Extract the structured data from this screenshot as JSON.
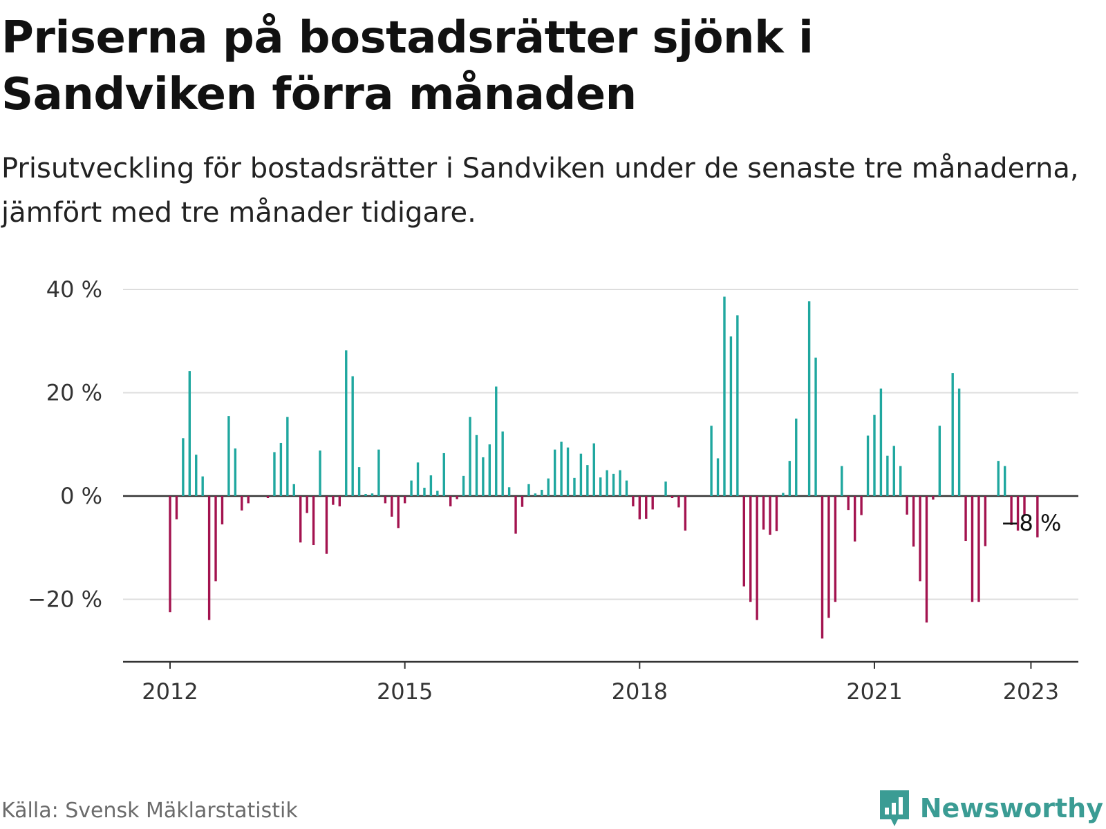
{
  "title": "Priserna på bostadsrätter sjönk i Sandviken förra månaden",
  "subtitle": "Prisutveckling för bostadsrätter i Sandviken under de senaste tre månaderna, jämfört med tre månader tidigare.",
  "source": "Källa: Svensk Mäklarstatistik",
  "brand": "Newsworthy",
  "colors": {
    "positive": "#1fa79f",
    "negative": "#a3134f",
    "grid": "#dddddd",
    "zero_line": "#333333"
  },
  "chart_data": {
    "type": "bar",
    "title": "",
    "xlabel": "",
    "ylabel": "",
    "y_unit": " %",
    "ylim": [
      -32,
      40
    ],
    "y_ticks": [
      40,
      20,
      0,
      -20
    ],
    "y_tick_labels": [
      "40 %",
      "20 %",
      "0 %",
      "−20 %"
    ],
    "x_ticks": [
      "2012",
      "2015",
      "2018",
      "2021",
      "2023"
    ],
    "grid": true,
    "legend": "none",
    "x_start": "2012-01",
    "annotation": {
      "label": "−8 %",
      "target": "2023-01"
    },
    "values": [
      -22.5,
      -4.5,
      11.2,
      24.2,
      8,
      3.8,
      -24,
      -16.5,
      -5.5,
      15.5,
      9.2,
      -2.8,
      -1.4,
      null,
      null,
      -0.4,
      8.5,
      10.3,
      15.3,
      2.3,
      -9,
      -3.3,
      -9.5,
      8.8,
      -11.2,
      -1.7,
      -2,
      28.2,
      23.2,
      5.6,
      0.4,
      0.5,
      9,
      -1.4,
      -4,
      -6.2,
      -1.4,
      3,
      6.5,
      1.6,
      4,
      1,
      8.3,
      -2,
      -0.6,
      3.9,
      15.3,
      11.8,
      7.5,
      10,
      21.2,
      12.5,
      1.7,
      -7.3,
      -2.1,
      2.3,
      0.5,
      1.2,
      3.4,
      9,
      10.5,
      9.4,
      3.5,
      8.2,
      6,
      10.2,
      3.6,
      5,
      4.3,
      5,
      3,
      -2,
      -4.5,
      -4.4,
      -2.6,
      null,
      2.8,
      -0.4,
      -2.2,
      -6.7,
      null,
      null,
      null,
      13.6,
      7.3,
      38.6,
      30.9,
      35,
      -17.5,
      -20.5,
      -24,
      -6.5,
      -7.5,
      -6.8,
      0.6,
      6.8,
      15,
      null,
      37.7,
      26.8,
      -27.6,
      -23.6,
      -20.5,
      5.8,
      -2.7,
      -8.8,
      -3.7,
      11.7,
      15.7,
      20.8,
      7.8,
      9.7,
      5.8,
      -3.6,
      -9.8,
      -16.5,
      -24.5,
      -0.7,
      13.6,
      null,
      23.8,
      20.8,
      -8.7,
      -20.5,
      -20.5,
      -9.7,
      null,
      6.8,
      5.8,
      -5.6,
      -6.7,
      -3.6,
      null,
      -8
    ]
  }
}
